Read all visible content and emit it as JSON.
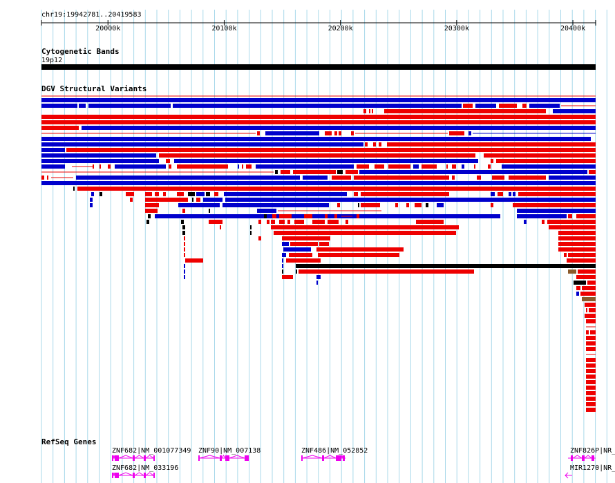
{
  "location": "chr19:19942781..20419583",
  "ruler": {
    "ticks": [
      "20000k",
      "20100k",
      "20200k",
      "20300k",
      "20400k"
    ],
    "tick_positions_k": [
      20000,
      20100,
      20200,
      20300,
      20400
    ],
    "start_k": 19942.781,
    "end_k": 20419.583
  },
  "tracks": {
    "cytoband": {
      "title": "Cytogenetic Bands",
      "band_label": "19p12"
    },
    "dgv": {
      "title": "DGV Structural Variants"
    },
    "refseq": {
      "title": "RefSeq Genes",
      "genes": [
        {
          "label": "ZNF682|NM_001077349"
        },
        {
          "label": "ZNF682|NM_033196"
        },
        {
          "label": "ZNF90|NM_007138"
        },
        {
          "label": "ZNF486|NM_052852"
        },
        {
          "label": "ZNF826P|NR_"
        },
        {
          "label": "MIR1270|NR_"
        }
      ]
    }
  },
  "colors": {
    "gain": "#0000cc",
    "loss": "#ee0000",
    "complex": "#000000",
    "inversion": "#8b5a2b",
    "gene": "#ee00ee",
    "grid": "#a8d8ea"
  }
}
